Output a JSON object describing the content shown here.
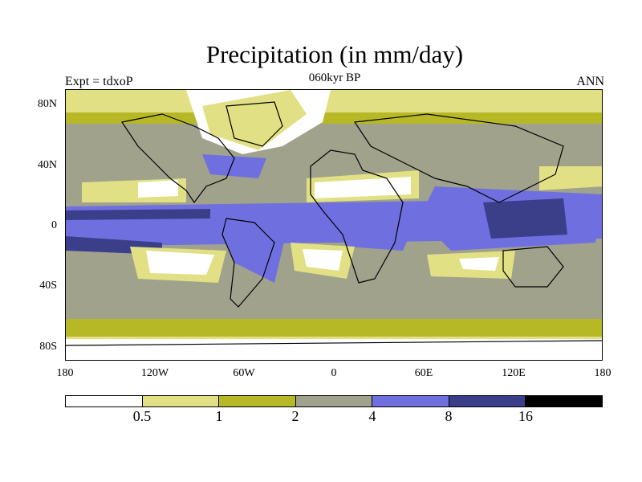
{
  "header": {
    "title": "Precipitation (in mm/day)",
    "left_label": "Expt = tdxoP",
    "center_label": "060kyr BP",
    "right_label": "ANN"
  },
  "axes": {
    "y_labels": [
      "80N",
      "40N",
      "0",
      "40S",
      "80S"
    ],
    "x_labels": [
      "180",
      "120W",
      "60W",
      "0",
      "60E",
      "120E",
      "180"
    ]
  },
  "legend": {
    "bin_colors": [
      "#ffffff",
      "#e2e084",
      "#b7b826",
      "#a1a28c",
      "#6f6fdf",
      "#3b3f8a",
      "#000000"
    ],
    "boundaries": [
      "0.5",
      "1",
      "2",
      "4",
      "8",
      "16"
    ]
  },
  "colors": {
    "none": "#ffffff",
    "light": "#e2e084",
    "olive": "#b7b826",
    "grey": "#a1a28c",
    "blue": "#6f6fdf",
    "dark": "#3b3f8a",
    "coast": "#000000"
  }
}
